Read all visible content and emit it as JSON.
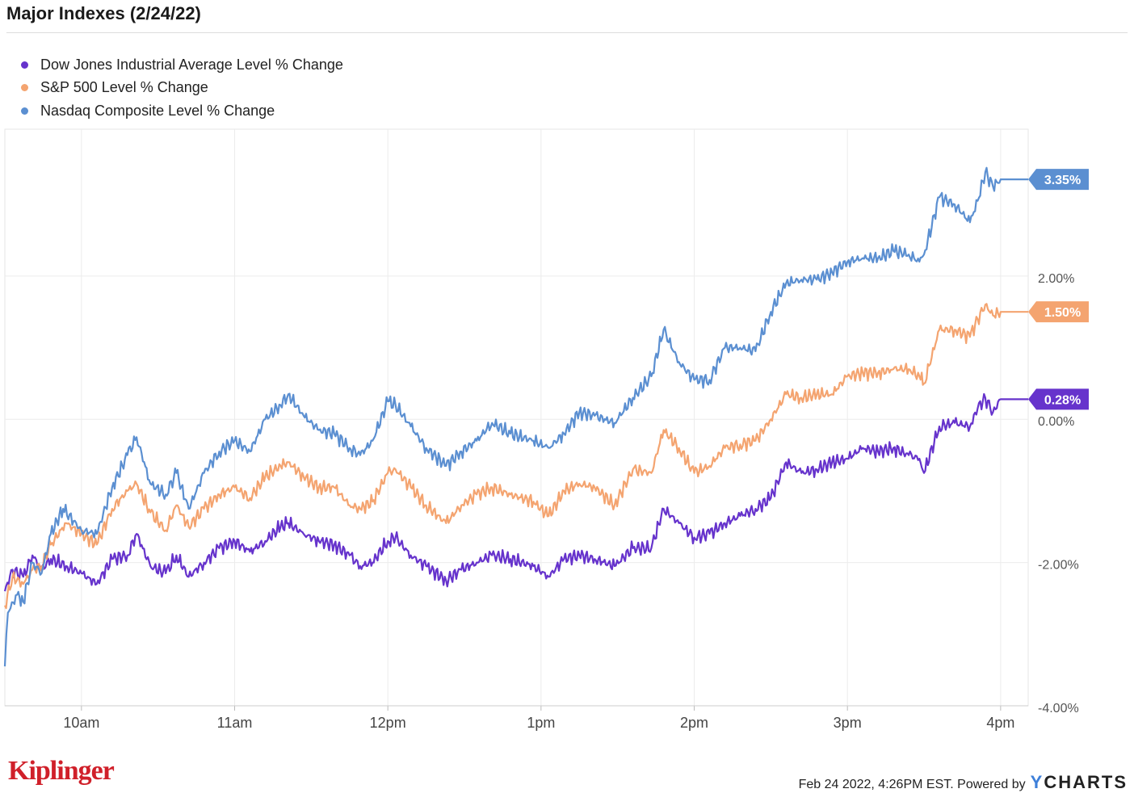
{
  "header": {
    "title": "Major Indexes (2/24/22)"
  },
  "brand": {
    "name": "Kiplinger"
  },
  "footer": {
    "timestamp": "Feb 24 2022, 4:26PM EST.",
    "powered_by": "Powered by",
    "provider_y": "Y",
    "provider_rest": "CHARTS"
  },
  "chart_data": {
    "type": "line",
    "xlabel": "",
    "ylabel": "",
    "x_ticks": [
      "10am",
      "11am",
      "12pm",
      "1pm",
      "2pm",
      "3pm",
      "4pm"
    ],
    "x_tick_hours": [
      10,
      11,
      12,
      13,
      14,
      15,
      16
    ],
    "x_range_hours": [
      9.5,
      16.18
    ],
    "y_ticks": [
      2,
      0,
      -2,
      -4
    ],
    "y_tick_labels": [
      "2.00%",
      "0.00%",
      "-2.00%",
      "-4.00%"
    ],
    "ylim": [
      -4,
      4.05
    ],
    "grid": true,
    "legend_position": "top-left",
    "series": [
      {
        "name": "Dow Jones Industrial Average Level % Change",
        "color": "#6633cc",
        "last_label": "0.28%",
        "points": [
          [
            9.5,
            -2.4
          ],
          [
            9.55,
            -2.1
          ],
          [
            9.62,
            -2.2
          ],
          [
            9.68,
            -1.9
          ],
          [
            9.74,
            -2.1
          ],
          [
            9.8,
            -1.95
          ],
          [
            9.9,
            -2.05
          ],
          [
            10.0,
            -2.15
          ],
          [
            10.1,
            -2.3
          ],
          [
            10.2,
            -1.95
          ],
          [
            10.3,
            -1.9
          ],
          [
            10.36,
            -1.6
          ],
          [
            10.45,
            -2.05
          ],
          [
            10.55,
            -2.15
          ],
          [
            10.62,
            -1.9
          ],
          [
            10.7,
            -2.2
          ],
          [
            10.8,
            -2.0
          ],
          [
            10.9,
            -1.8
          ],
          [
            11.0,
            -1.7
          ],
          [
            11.1,
            -1.85
          ],
          [
            11.2,
            -1.7
          ],
          [
            11.3,
            -1.5
          ],
          [
            11.35,
            -1.45
          ],
          [
            11.45,
            -1.6
          ],
          [
            11.55,
            -1.7
          ],
          [
            11.65,
            -1.75
          ],
          [
            11.75,
            -1.9
          ],
          [
            11.82,
            -2.05
          ],
          [
            11.9,
            -2.0
          ],
          [
            12.0,
            -1.7
          ],
          [
            12.05,
            -1.65
          ],
          [
            12.15,
            -1.9
          ],
          [
            12.25,
            -2.05
          ],
          [
            12.38,
            -2.25
          ],
          [
            12.48,
            -2.1
          ],
          [
            12.58,
            -2.0
          ],
          [
            12.68,
            -1.9
          ],
          [
            12.8,
            -1.95
          ],
          [
            12.95,
            -2.05
          ],
          [
            13.05,
            -2.2
          ],
          [
            13.15,
            -1.95
          ],
          [
            13.25,
            -1.9
          ],
          [
            13.35,
            -1.95
          ],
          [
            13.48,
            -2.05
          ],
          [
            13.6,
            -1.8
          ],
          [
            13.72,
            -1.8
          ],
          [
            13.8,
            -1.25
          ],
          [
            13.9,
            -1.45
          ],
          [
            14.0,
            -1.65
          ],
          [
            14.1,
            -1.6
          ],
          [
            14.2,
            -1.45
          ],
          [
            14.3,
            -1.35
          ],
          [
            14.4,
            -1.25
          ],
          [
            14.5,
            -1.1
          ],
          [
            14.6,
            -0.6
          ],
          [
            14.7,
            -0.75
          ],
          [
            14.8,
            -0.7
          ],
          [
            14.9,
            -0.6
          ],
          [
            15.0,
            -0.55
          ],
          [
            15.1,
            -0.4
          ],
          [
            15.2,
            -0.45
          ],
          [
            15.3,
            -0.4
          ],
          [
            15.4,
            -0.5
          ],
          [
            15.47,
            -0.55
          ],
          [
            15.5,
            -0.75
          ],
          [
            15.6,
            -0.1
          ],
          [
            15.7,
            -0.05
          ],
          [
            15.8,
            -0.1
          ],
          [
            15.85,
            0.15
          ],
          [
            15.9,
            0.3
          ],
          [
            15.95,
            0.1
          ],
          [
            16.0,
            0.28
          ],
          [
            16.18,
            0.28
          ]
        ]
      },
      {
        "name": "S&P 500 Level % Change",
        "color": "#f4a470",
        "last_label": "1.50%",
        "points": [
          [
            9.5,
            -2.6
          ],
          [
            9.55,
            -2.2
          ],
          [
            9.62,
            -2.3
          ],
          [
            9.68,
            -2.1
          ],
          [
            9.74,
            -2.05
          ],
          [
            9.8,
            -1.75
          ],
          [
            9.9,
            -1.45
          ],
          [
            10.0,
            -1.6
          ],
          [
            10.1,
            -1.75
          ],
          [
            10.2,
            -1.25
          ],
          [
            10.3,
            -1.0
          ],
          [
            10.36,
            -0.9
          ],
          [
            10.45,
            -1.3
          ],
          [
            10.55,
            -1.55
          ],
          [
            10.62,
            -1.2
          ],
          [
            10.7,
            -1.5
          ],
          [
            10.8,
            -1.25
          ],
          [
            10.9,
            -1.05
          ],
          [
            11.0,
            -0.95
          ],
          [
            11.1,
            -1.1
          ],
          [
            11.2,
            -0.8
          ],
          [
            11.3,
            -0.65
          ],
          [
            11.35,
            -0.6
          ],
          [
            11.45,
            -0.8
          ],
          [
            11.55,
            -0.95
          ],
          [
            11.65,
            -0.95
          ],
          [
            11.75,
            -1.2
          ],
          [
            11.82,
            -1.25
          ],
          [
            11.9,
            -1.15
          ],
          [
            12.0,
            -0.75
          ],
          [
            12.05,
            -0.7
          ],
          [
            12.15,
            -0.95
          ],
          [
            12.25,
            -1.2
          ],
          [
            12.38,
            -1.45
          ],
          [
            12.48,
            -1.2
          ],
          [
            12.58,
            -1.05
          ],
          [
            12.68,
            -0.95
          ],
          [
            12.8,
            -1.05
          ],
          [
            12.95,
            -1.15
          ],
          [
            13.05,
            -1.35
          ],
          [
            13.15,
            -1.0
          ],
          [
            13.25,
            -0.9
          ],
          [
            13.35,
            -0.95
          ],
          [
            13.48,
            -1.2
          ],
          [
            13.6,
            -0.7
          ],
          [
            13.72,
            -0.75
          ],
          [
            13.8,
            -0.15
          ],
          [
            13.9,
            -0.4
          ],
          [
            14.0,
            -0.75
          ],
          [
            14.1,
            -0.65
          ],
          [
            14.2,
            -0.4
          ],
          [
            14.3,
            -0.35
          ],
          [
            14.4,
            -0.3
          ],
          [
            14.5,
            0.0
          ],
          [
            14.6,
            0.35
          ],
          [
            14.7,
            0.3
          ],
          [
            14.8,
            0.35
          ],
          [
            14.9,
            0.35
          ],
          [
            15.0,
            0.6
          ],
          [
            15.1,
            0.65
          ],
          [
            15.2,
            0.65
          ],
          [
            15.3,
            0.7
          ],
          [
            15.4,
            0.7
          ],
          [
            15.47,
            0.6
          ],
          [
            15.5,
            0.5
          ],
          [
            15.6,
            1.25
          ],
          [
            15.7,
            1.25
          ],
          [
            15.8,
            1.15
          ],
          [
            15.85,
            1.4
          ],
          [
            15.9,
            1.6
          ],
          [
            15.95,
            1.45
          ],
          [
            16.0,
            1.5
          ],
          [
            16.18,
            1.5
          ]
        ]
      },
      {
        "name": "Nasdaq Composite Level % Change",
        "color": "#5b8fd1",
        "last_label": "3.35%",
        "points": [
          [
            9.5,
            -3.45
          ],
          [
            9.52,
            -2.7
          ],
          [
            9.58,
            -2.45
          ],
          [
            9.62,
            -2.55
          ],
          [
            9.68,
            -2.0
          ],
          [
            9.74,
            -2.15
          ],
          [
            9.8,
            -1.6
          ],
          [
            9.88,
            -1.25
          ],
          [
            10.0,
            -1.55
          ],
          [
            10.1,
            -1.6
          ],
          [
            10.2,
            -0.95
          ],
          [
            10.3,
            -0.5
          ],
          [
            10.36,
            -0.25
          ],
          [
            10.45,
            -0.9
          ],
          [
            10.55,
            -1.05
          ],
          [
            10.62,
            -0.75
          ],
          [
            10.7,
            -1.25
          ],
          [
            10.8,
            -0.75
          ],
          [
            10.9,
            -0.45
          ],
          [
            11.0,
            -0.3
          ],
          [
            11.1,
            -0.45
          ],
          [
            11.2,
            0.0
          ],
          [
            11.3,
            0.2
          ],
          [
            11.35,
            0.35
          ],
          [
            11.45,
            0.05
          ],
          [
            11.55,
            -0.15
          ],
          [
            11.65,
            -0.2
          ],
          [
            11.75,
            -0.4
          ],
          [
            11.82,
            -0.5
          ],
          [
            11.9,
            -0.3
          ],
          [
            12.0,
            0.25
          ],
          [
            12.05,
            0.2
          ],
          [
            12.15,
            -0.1
          ],
          [
            12.25,
            -0.4
          ],
          [
            12.38,
            -0.65
          ],
          [
            12.48,
            -0.45
          ],
          [
            12.58,
            -0.3
          ],
          [
            12.68,
            -0.05
          ],
          [
            12.8,
            -0.2
          ],
          [
            12.95,
            -0.3
          ],
          [
            13.05,
            -0.4
          ],
          [
            13.15,
            -0.2
          ],
          [
            13.25,
            0.1
          ],
          [
            13.35,
            0.05
          ],
          [
            13.48,
            -0.05
          ],
          [
            13.6,
            0.3
          ],
          [
            13.72,
            0.6
          ],
          [
            13.8,
            1.25
          ],
          [
            13.9,
            0.8
          ],
          [
            14.0,
            0.55
          ],
          [
            14.1,
            0.55
          ],
          [
            14.2,
            1.0
          ],
          [
            14.3,
            1.0
          ],
          [
            14.4,
            0.95
          ],
          [
            14.5,
            1.5
          ],
          [
            14.6,
            1.9
          ],
          [
            14.7,
            1.95
          ],
          [
            14.8,
            1.95
          ],
          [
            14.9,
            2.05
          ],
          [
            15.0,
            2.2
          ],
          [
            15.1,
            2.25
          ],
          [
            15.2,
            2.25
          ],
          [
            15.3,
            2.35
          ],
          [
            15.4,
            2.3
          ],
          [
            15.47,
            2.2
          ],
          [
            15.5,
            2.3
          ],
          [
            15.6,
            3.1
          ],
          [
            15.7,
            3.0
          ],
          [
            15.8,
            2.75
          ],
          [
            15.85,
            3.05
          ],
          [
            15.9,
            3.45
          ],
          [
            15.95,
            3.25
          ],
          [
            16.0,
            3.35
          ],
          [
            16.18,
            3.35
          ]
        ]
      }
    ]
  }
}
